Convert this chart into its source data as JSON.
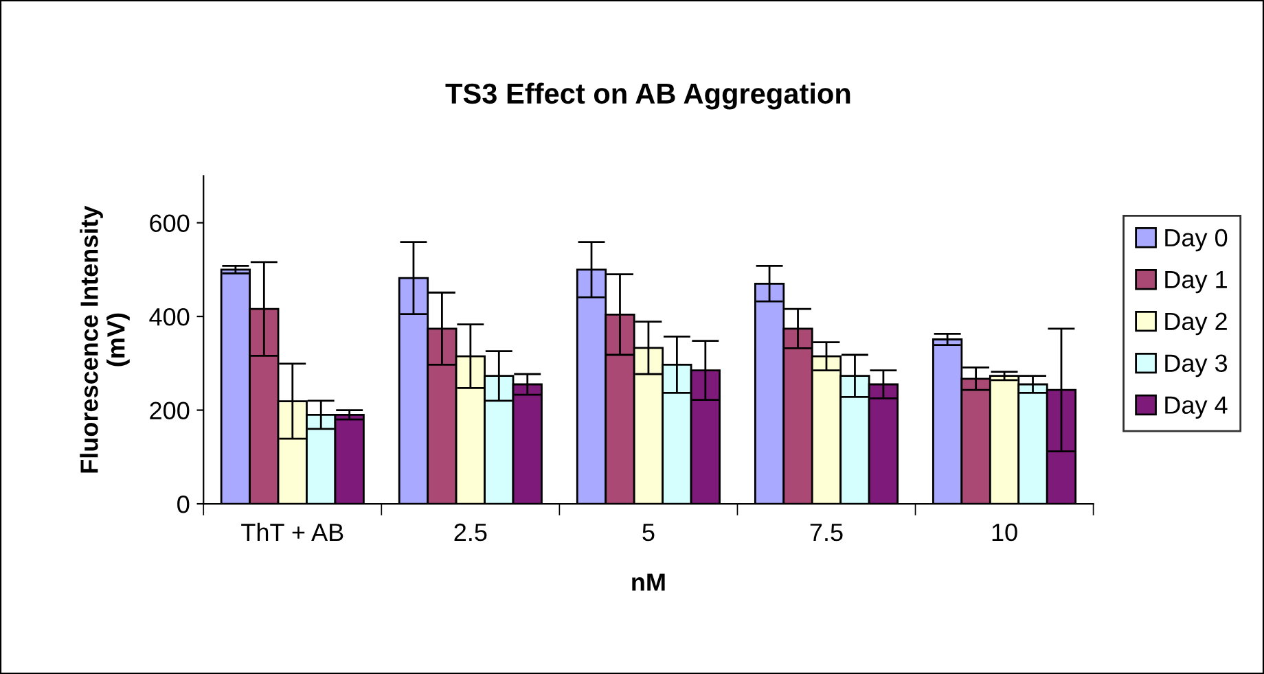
{
  "chart_data": {
    "type": "bar",
    "title": "TS3 Effect on AB Aggregation",
    "xlabel": "nM",
    "ylabel": "Fluorescence Intensity\n(mV)",
    "categories": [
      "ThT + AB",
      "2.5",
      "5",
      "7.5",
      "10"
    ],
    "series": [
      {
        "name": "Day 0",
        "color": "#a9aaff",
        "values": [
          500,
          482,
          500,
          470,
          351
        ],
        "errors": [
          8,
          77,
          59,
          38,
          12
        ]
      },
      {
        "name": "Day 1",
        "color": "#aa4a74",
        "values": [
          416,
          374,
          404,
          374,
          267
        ],
        "errors": [
          100,
          77,
          86,
          42,
          24
        ]
      },
      {
        "name": "Day 2",
        "color": "#ffffd5",
        "values": [
          219,
          315,
          333,
          315,
          273
        ],
        "errors": [
          80,
          68,
          56,
          30,
          9
        ]
      },
      {
        "name": "Day 3",
        "color": "#d5ffff",
        "values": [
          190,
          273,
          297,
          273,
          255
        ],
        "errors": [
          30,
          53,
          60,
          45,
          18
        ]
      },
      {
        "name": "Day 4",
        "color": "#7e1a7a",
        "values": [
          190,
          255,
          285,
          255,
          243
        ],
        "errors": [
          10,
          22,
          63,
          30,
          131
        ]
      }
    ],
    "ylim": [
      0,
      700
    ],
    "yticks": [
      0,
      200,
      400,
      600
    ],
    "grid": false,
    "legend": "right"
  }
}
